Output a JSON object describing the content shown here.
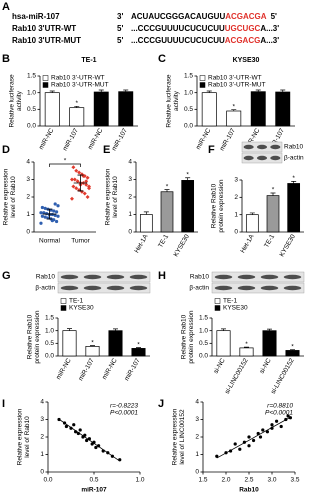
{
  "sequence_alignment": {
    "label": "A",
    "rows": [
      {
        "name": "hsa-miR-107",
        "end_left": "3'",
        "plain": "ACUAUCGGGACAUGUU",
        "highlight": "ACGACGA",
        "tail": "5'"
      },
      {
        "name": "Rab10 3'UTR-WT",
        "end_left": "5'",
        "plain": "...CCCGUUUUCUCUCUU",
        "highlight": "UGCUGC",
        "tail": "A...3'"
      },
      {
        "name": "Rab10 3'UTR-MUT",
        "end_left": "5'",
        "plain": "...CCCGUUUUCUCUCUU",
        "highlight": "ACGACG",
        "tail": "A...3'"
      }
    ]
  },
  "chart_data": [
    {
      "label": "B",
      "type": "bar",
      "title": "TE-1",
      "ylabel": [
        "Relative luciferase",
        "activity"
      ],
      "categories": [
        "miR-NC",
        "miR-107",
        "miR-NC",
        "miR-107"
      ],
      "series": [
        {
          "name": "Rab10 3'-UTR-WT",
          "color": "#ffffff",
          "values": [
            1.0,
            0.55,
            null,
            null
          ],
          "errors": [
            0.05,
            0.04,
            null,
            null
          ]
        },
        {
          "name": "Rab10 3'-UTR-MUT",
          "color": "#000000",
          "values": [
            null,
            null,
            1.02,
            1.03
          ],
          "errors": [
            null,
            null,
            0.06,
            0.05
          ]
        }
      ],
      "ylim": [
        0,
        1.5
      ],
      "yticks": [
        {
          "value": 0,
          "label": "0.0"
        },
        {
          "value": 0.5,
          "label": "0.5"
        },
        {
          "value": 1,
          "label": "1.0"
        },
        {
          "value": 1.5,
          "label": "1.5"
        }
      ],
      "annotations": [
        "*"
      ]
    },
    {
      "label": "C",
      "type": "bar",
      "title": "KYSE30",
      "ylabel": [
        "Relative luciferase",
        "activity"
      ],
      "categories": [
        "miR-NC",
        "miR-107",
        "miR-NC",
        "miR-107"
      ],
      "series": [
        {
          "name": "Rab10 3'-UTR-WT",
          "color": "#ffffff",
          "values": [
            1.0,
            0.45,
            null,
            null
          ],
          "errors": [
            0.05,
            0.04,
            null,
            null
          ]
        },
        {
          "name": "Rab10 3'-UTR-MUT",
          "color": "#000000",
          "values": [
            null,
            null,
            1.03,
            1.02
          ],
          "errors": [
            null,
            null,
            0.05,
            0.06
          ]
        }
      ],
      "ylim": [
        0,
        1.5
      ],
      "yticks": [
        {
          "value": 0,
          "label": "0.0"
        },
        {
          "value": 0.5,
          "label": "0.5"
        },
        {
          "value": 1,
          "label": "1.0"
        },
        {
          "value": 1.5,
          "label": "1.5"
        }
      ],
      "annotations": [
        "*"
      ]
    },
    {
      "label": "D",
      "type": "strip",
      "ylabel": [
        "Relative expression",
        "level of Rab10"
      ],
      "categories": [
        "Normal",
        "Tumor"
      ],
      "colors": [
        "#2f5fb0",
        "#e23b2e"
      ],
      "values": [
        [
          0.5,
          0.6,
          0.7,
          0.75,
          0.8,
          0.85,
          0.9,
          0.9,
          0.95,
          1.0,
          1.0,
          1.05,
          1.1,
          1.1,
          1.15,
          1.2,
          1.25,
          1.3,
          1.35,
          1.4,
          1.5,
          1.6,
          0.65,
          1.0
        ],
        [
          1.9,
          2.0,
          2.2,
          2.3,
          2.4,
          2.5,
          2.6,
          2.6,
          2.7,
          2.8,
          2.8,
          2.9,
          3.0,
          3.0,
          3.1,
          3.2,
          3.3,
          3.4,
          3.5,
          3.7,
          2.5,
          2.9,
          3.2,
          2.7
        ]
      ],
      "ylim": [
        0,
        4
      ],
      "yticks": [
        0,
        1,
        2,
        3,
        4
      ],
      "annotations": [
        "*"
      ]
    },
    {
      "label": "E",
      "type": "bar",
      "ylabel": [
        "Relative expression",
        "level of Rab10"
      ],
      "categories": [
        "Het-1A",
        "TE-1",
        "KYSE30"
      ],
      "colors": [
        "#ffffff",
        "#9a9a9a",
        "#000000"
      ],
      "values": [
        1.0,
        2.3,
        2.95
      ],
      "errors": [
        0.15,
        0.12,
        0.15
      ],
      "ylim": [
        0,
        4
      ],
      "yticks": [
        0,
        1,
        2,
        3,
        4
      ],
      "annotations": [
        "*",
        "*"
      ]
    },
    {
      "label": "F",
      "type": "bar",
      "ylabel": [
        "Relative Rab10",
        "protein expression"
      ],
      "blot_labels": [
        "Rab10",
        "β-actin"
      ],
      "categories": [
        "Het-1A",
        "TE-1",
        "KYSE30"
      ],
      "colors": [
        "#ffffff",
        "#9a9a9a",
        "#000000"
      ],
      "values": [
        1.0,
        2.1,
        2.8
      ],
      "errors": [
        0.1,
        0.15,
        0.12
      ],
      "ylim": [
        0,
        3
      ],
      "yticks": [
        0,
        1,
        2,
        3
      ],
      "annotations": [
        "*",
        "*"
      ]
    },
    {
      "label": "G",
      "type": "bar",
      "ylabel": [
        "Relative Rab10",
        "protein expression"
      ],
      "blot_labels": [
        "Rab10",
        "β-actin"
      ],
      "categories": [
        "miR-NC",
        "miR-107",
        "miR-NC",
        "miR-107"
      ],
      "series": [
        {
          "name": "TE-1",
          "color": "#ffffff",
          "values": [
            1.0,
            0.38,
            null,
            null
          ],
          "errors": [
            0.08,
            0.03,
            null,
            null
          ]
        },
        {
          "name": "KYSE30",
          "color": "#000000",
          "values": [
            null,
            null,
            1.0,
            0.3
          ],
          "errors": [
            null,
            null,
            0.07,
            0.03
          ]
        }
      ],
      "ylim": [
        0,
        1.5
      ],
      "yticks": [
        {
          "value": 0,
          "label": "0.0"
        },
        {
          "value": 0.5,
          "label": "0.5"
        },
        {
          "value": 1,
          "label": "1.0"
        },
        {
          "value": 1.5,
          "label": "1.5"
        }
      ],
      "annotations": [
        "*",
        "*"
      ]
    },
    {
      "label": "H",
      "type": "bar",
      "ylabel": [
        "Relative Rab10",
        "protein expression"
      ],
      "blot_labels": [
        "Rab10",
        "β-actin"
      ],
      "categories": [
        "si-NC",
        "si-LINC00152",
        "si-NC",
        "si-LINC00152"
      ],
      "series": [
        {
          "name": "TE-1",
          "color": "#ffffff",
          "values": [
            1.0,
            0.32,
            null,
            null
          ],
          "errors": [
            0.07,
            0.03,
            null,
            null
          ]
        },
        {
          "name": "KYSE30",
          "color": "#000000",
          "values": [
            null,
            null,
            1.0,
            0.22
          ],
          "errors": [
            null,
            null,
            0.06,
            0.03
          ]
        }
      ],
      "ylim": [
        0,
        1.5
      ],
      "yticks": [
        {
          "value": 0,
          "label": "0.0"
        },
        {
          "value": 0.5,
          "label": "0.5"
        },
        {
          "value": 1,
          "label": "1.0"
        },
        {
          "value": 1.5,
          "label": "1.5"
        }
      ],
      "annotations": [
        "*",
        "*"
      ]
    },
    {
      "label": "I",
      "type": "scatter",
      "xlabel": "miR-107",
      "ylabel": [
        "Relative expression",
        "level of Rab10"
      ],
      "color": "#000000",
      "x": [
        0.12,
        0.18,
        0.2,
        0.25,
        0.28,
        0.3,
        0.33,
        0.35,
        0.38,
        0.4,
        0.42,
        0.45,
        0.48,
        0.5,
        0.52,
        0.55,
        0.6,
        0.65,
        0.7,
        0.78
      ],
      "values": [
        3.0,
        2.8,
        2.6,
        2.5,
        2.7,
        2.3,
        2.2,
        2.4,
        2.0,
        2.1,
        1.8,
        1.9,
        1.6,
        1.7,
        1.4,
        1.5,
        1.2,
        1.1,
        0.9,
        0.7
      ],
      "xlim": [
        0,
        1
      ],
      "xticks": [
        {
          "value": 0,
          "label": "0.0"
        },
        0.5,
        {
          "value": 1,
          "label": "1.0"
        }
      ],
      "ylim": [
        0,
        4
      ],
      "yticks": [
        0,
        1,
        2,
        3,
        4
      ],
      "annotations": [
        "r=-0.8223",
        "P<0.0001"
      ]
    },
    {
      "label": "J",
      "type": "scatter",
      "xlabel": "Rab10",
      "ylabel": [
        "Relative expression",
        "level of LINC00152"
      ],
      "color": "#000000",
      "x": [
        1.8,
        2.0,
        2.1,
        2.2,
        2.3,
        2.4,
        2.5,
        2.5,
        2.6,
        2.7,
        2.75,
        2.8,
        2.9,
        3.0,
        3.0,
        3.1,
        3.2,
        3.3,
        3.35,
        3.4
      ],
      "values": [
        0.9,
        1.1,
        1.2,
        1.6,
        1.3,
        1.7,
        1.5,
        2.0,
        1.8,
        2.2,
        2.0,
        2.4,
        2.3,
        2.7,
        2.5,
        2.9,
        2.6,
        3.0,
        3.2,
        3.1
      ],
      "xlim": [
        1.5,
        3.5
      ],
      "xticks": [
        1.5,
        {
          "value": 2,
          "label": "2.0"
        },
        2.5,
        {
          "value": 3,
          "label": "3.0"
        },
        3.5
      ],
      "ylim": [
        0,
        4
      ],
      "yticks": [
        0,
        1,
        2,
        3,
        4
      ],
      "annotations": [
        "r=0.8810",
        "P<0.0001"
      ]
    }
  ]
}
